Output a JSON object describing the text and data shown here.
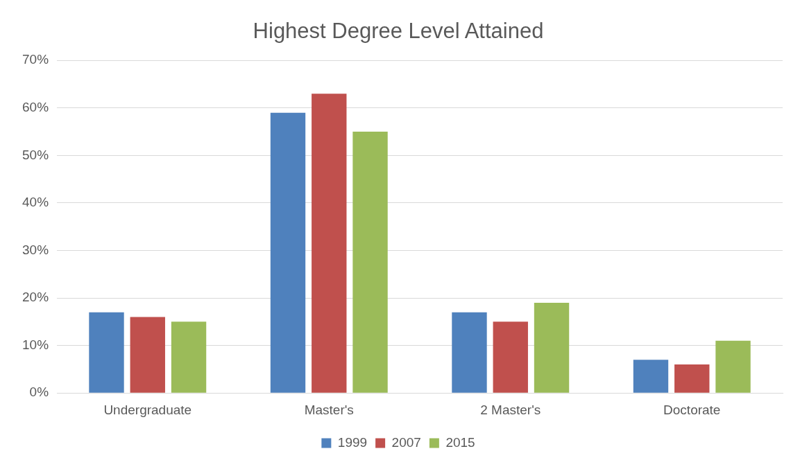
{
  "chart_data": {
    "type": "bar",
    "title": "Highest Degree Level Attained",
    "categories": [
      "Undergraduate",
      "Master's",
      "2 Master's",
      "Doctorate"
    ],
    "series": [
      {
        "name": "1999",
        "color": "#4f81bd",
        "values": [
          17,
          59,
          17,
          7
        ]
      },
      {
        "name": "2007",
        "color": "#c0504d",
        "values": [
          16,
          63,
          15,
          6
        ]
      },
      {
        "name": "2015",
        "color": "#9bbb59",
        "values": [
          15,
          55,
          19,
          11
        ]
      }
    ],
    "ylim": [
      0,
      70
    ],
    "yticks": [
      {
        "value": 0,
        "label": "0%"
      },
      {
        "value": 10,
        "label": "10%"
      },
      {
        "value": 20,
        "label": "20%"
      },
      {
        "value": 30,
        "label": "30%"
      },
      {
        "value": 40,
        "label": "40%"
      },
      {
        "value": 50,
        "label": "50%"
      },
      {
        "value": 60,
        "label": "60%"
      },
      {
        "value": 70,
        "label": "70%"
      }
    ],
    "grid": "y",
    "legend": "bottom"
  }
}
